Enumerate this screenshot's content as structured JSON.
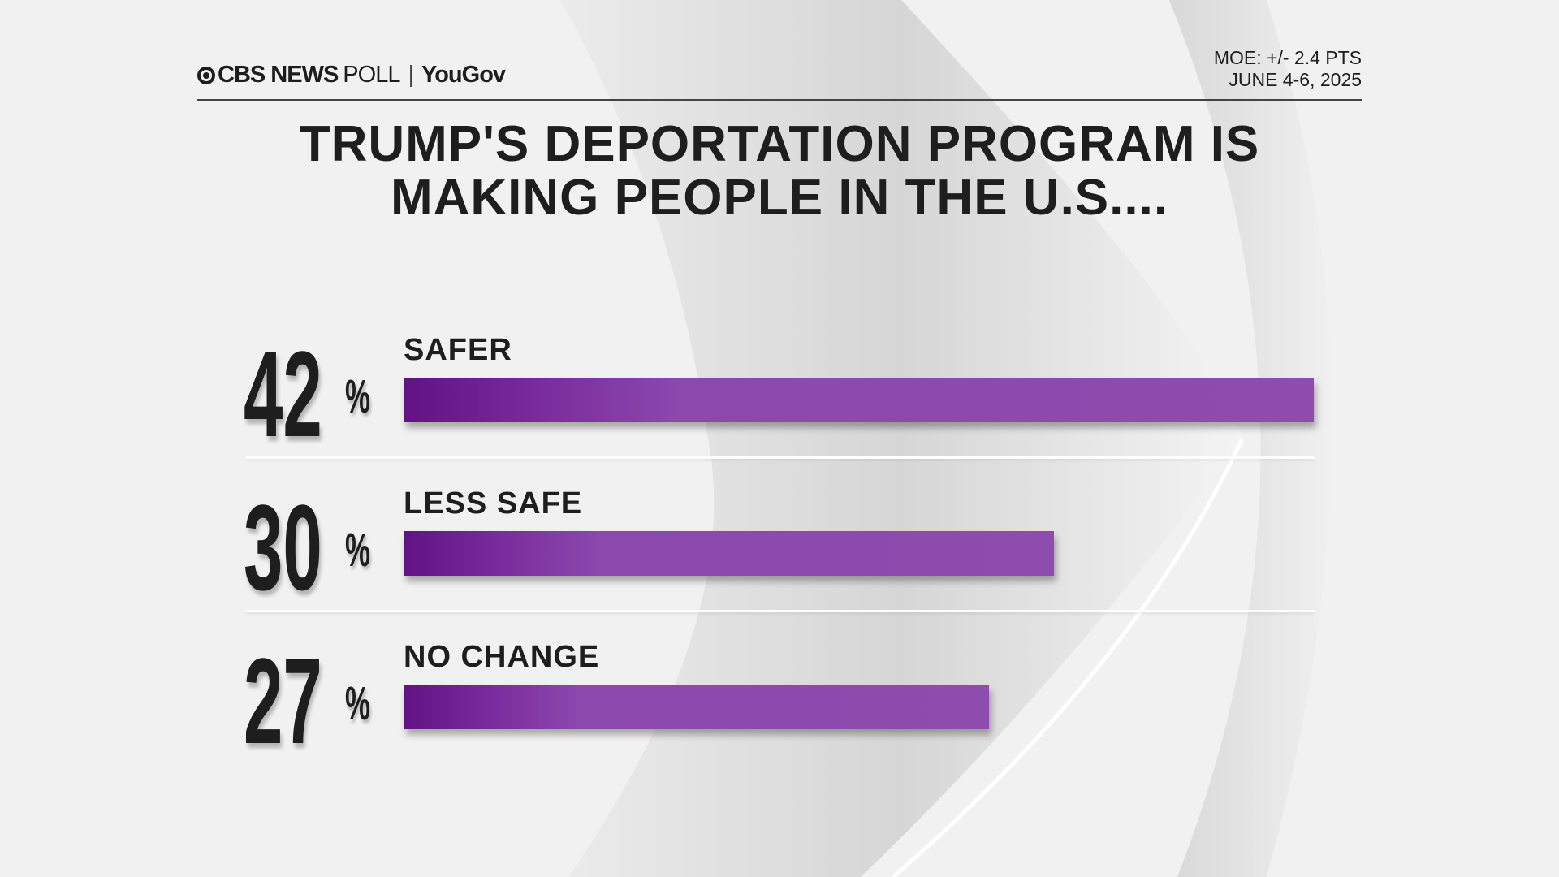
{
  "header": {
    "brand": "CBS NEWS",
    "brand_suffix": "POLL",
    "separator": "|",
    "partner": "YouGov",
    "moe": "MOE: +/- 2.4 PTS",
    "dates": "JUNE 4-6, 2025"
  },
  "chart_data": {
    "type": "bar",
    "orientation": "horizontal",
    "title_lines": [
      "TRUMP'S DEPORTATION PROGRAM IS",
      "MAKING PEOPLE IN THE U.S...."
    ],
    "categories": [
      "SAFER",
      "LESS SAFE",
      "NO CHANGE"
    ],
    "values": [
      42,
      30,
      27
    ],
    "value_labels": [
      "42",
      "30",
      "27"
    ],
    "unit": "%",
    "bar_color": "#8e4caf",
    "bar_color_start": "#611283"
  }
}
